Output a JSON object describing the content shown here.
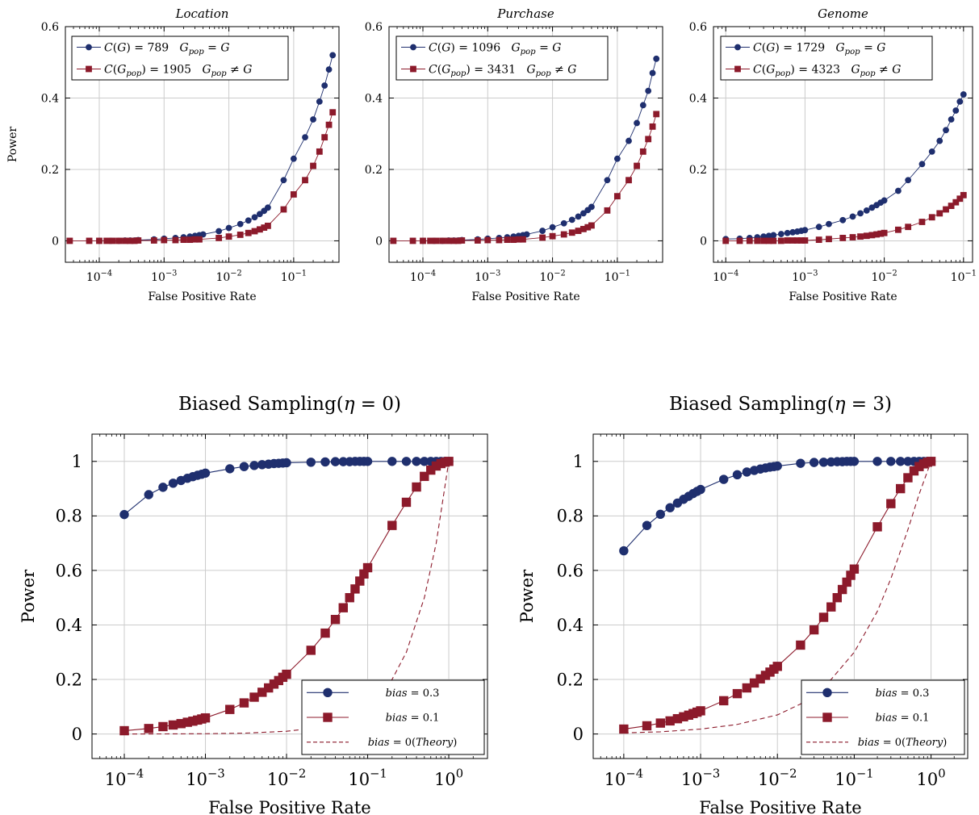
{
  "colors": {
    "blue": "#1f2f6e",
    "red": "#8c1a2b",
    "grid": "#cccccc"
  },
  "chart_data": [
    {
      "type": "line",
      "title": "Location",
      "xlabel": "False Positive Rate",
      "ylabel": "Power",
      "xscale": "log",
      "xlim": [
        3e-05,
        0.5
      ],
      "ylim": [
        -0.06,
        0.6
      ],
      "xticks": [
        "10^-4",
        "10^-3",
        "10^-2",
        "10^-1"
      ],
      "yticks": [
        "0",
        "0.2",
        "0.4",
        "0.6"
      ],
      "grid": true,
      "legend": "top-left",
      "series": [
        {
          "name": "C(G) = 789   G_pop = G",
          "marker": "circle",
          "color": "blue",
          "x": [
            0.0001,
            0.00015,
            0.0002,
            0.00025,
            0.0003,
            0.00035,
            0.0004,
            0.0007,
            0.001,
            0.0015,
            0.002,
            0.0025,
            0.003,
            0.0035,
            0.004,
            0.007,
            0.01,
            0.015,
            0.02,
            0.025,
            0.03,
            0.035,
            0.04,
            0.07,
            0.1,
            0.15,
            0.2,
            0.25,
            0.3,
            0.35,
            0.4
          ],
          "y": [
            0,
            0,
            0,
            0.001,
            0.001,
            0.001,
            0.002,
            0.004,
            0.006,
            0.008,
            0.01,
            0.012,
            0.014,
            0.016,
            0.018,
            0.027,
            0.036,
            0.047,
            0.057,
            0.066,
            0.075,
            0.084,
            0.093,
            0.17,
            0.23,
            0.29,
            0.34,
            0.39,
            0.435,
            0.48,
            0.52
          ]
        },
        {
          "name": "C(G_pop) = 1905   G_pop ≠ G",
          "marker": "square",
          "color": "red",
          "x": [
            3.5e-05,
            7e-05,
            0.0001,
            0.00013,
            0.00016,
            0.0002,
            0.00025,
            0.0003,
            0.00035,
            0.0004,
            0.0007,
            0.001,
            0.0015,
            0.002,
            0.0025,
            0.003,
            0.0035,
            0.007,
            0.01,
            0.015,
            0.02,
            0.025,
            0.03,
            0.035,
            0.04,
            0.07,
            0.1,
            0.15,
            0.2,
            0.25,
            0.3,
            0.35,
            0.4
          ],
          "y": [
            0,
            0,
            0,
            0,
            0,
            0,
            0,
            0,
            0,
            0.001,
            0.001,
            0.002,
            0.002,
            0.003,
            0.003,
            0.004,
            0.004,
            0.008,
            0.012,
            0.017,
            0.022,
            0.027,
            0.032,
            0.037,
            0.042,
            0.088,
            0.13,
            0.17,
            0.21,
            0.25,
            0.29,
            0.325,
            0.36
          ]
        }
      ]
    },
    {
      "type": "line",
      "title": "Purchase",
      "xlabel": "False Positive Rate",
      "ylabel": "",
      "xscale": "log",
      "xlim": [
        3e-05,
        0.5
      ],
      "ylim": [
        -0.06,
        0.6
      ],
      "xticks": [
        "10^-4",
        "10^-3",
        "10^-2",
        "10^-1"
      ],
      "yticks": [
        "0",
        "0.2",
        "0.4",
        "0.6"
      ],
      "grid": true,
      "legend": "top-left",
      "series": [
        {
          "name": "C(G) = 1096   G_pop = G",
          "marker": "circle",
          "color": "blue",
          "x": [
            0.0001,
            0.00015,
            0.0002,
            0.00025,
            0.0003,
            0.00035,
            0.0004,
            0.0007,
            0.001,
            0.0015,
            0.002,
            0.0025,
            0.003,
            0.0035,
            0.004,
            0.007,
            0.01,
            0.015,
            0.02,
            0.025,
            0.03,
            0.035,
            0.04,
            0.07,
            0.1,
            0.15,
            0.2,
            0.25,
            0.3,
            0.35,
            0.4
          ],
          "y": [
            0,
            0,
            0,
            0.001,
            0.001,
            0.001,
            0.002,
            0.004,
            0.006,
            0.008,
            0.01,
            0.012,
            0.014,
            0.016,
            0.018,
            0.028,
            0.038,
            0.049,
            0.059,
            0.068,
            0.077,
            0.086,
            0.095,
            0.17,
            0.23,
            0.28,
            0.33,
            0.38,
            0.42,
            0.47,
            0.51
          ]
        },
        {
          "name": "C(G_pop) = 3431   G_pop ≠ G",
          "marker": "square",
          "color": "red",
          "x": [
            3.5e-05,
            7e-05,
            0.0001,
            0.00013,
            0.00016,
            0.0002,
            0.00025,
            0.0003,
            0.00035,
            0.0004,
            0.0007,
            0.001,
            0.0015,
            0.002,
            0.0025,
            0.003,
            0.0035,
            0.007,
            0.01,
            0.015,
            0.02,
            0.025,
            0.03,
            0.035,
            0.04,
            0.07,
            0.1,
            0.15,
            0.2,
            0.25,
            0.3,
            0.35,
            0.4
          ],
          "y": [
            0,
            0,
            0,
            0,
            0,
            0,
            0,
            0,
            0,
            0.001,
            0.001,
            0.002,
            0.002,
            0.003,
            0.003,
            0.004,
            0.004,
            0.009,
            0.013,
            0.018,
            0.023,
            0.028,
            0.033,
            0.038,
            0.043,
            0.085,
            0.125,
            0.17,
            0.21,
            0.25,
            0.285,
            0.32,
            0.355
          ]
        }
      ]
    },
    {
      "type": "line",
      "title": "Genome",
      "xlabel": "False Positive Rate",
      "ylabel": "",
      "xscale": "log",
      "xlim": [
        7e-05,
        0.13
      ],
      "ylim": [
        -0.06,
        0.6
      ],
      "xticks": [
        "10^-4",
        "10^-3",
        "10^-2",
        "10^-1"
      ],
      "yticks": [
        "0",
        "0.2",
        "0.4",
        "0.6"
      ],
      "grid": true,
      "legend": "top-left",
      "series": [
        {
          "name": "C(G) = 1729   G_pop = G",
          "marker": "circle",
          "color": "blue",
          "x": [
            0.0001,
            0.00015,
            0.0002,
            0.00025,
            0.0003,
            0.00035,
            0.0004,
            0.0005,
            0.0006,
            0.0007,
            0.0008,
            0.0009,
            0.001,
            0.0015,
            0.002,
            0.003,
            0.004,
            0.005,
            0.006,
            0.007,
            0.008,
            0.009,
            0.01,
            0.015,
            0.02,
            0.03,
            0.04,
            0.05,
            0.06,
            0.07,
            0.08,
            0.09,
            0.1
          ],
          "y": [
            0.005,
            0.006,
            0.008,
            0.01,
            0.012,
            0.014,
            0.016,
            0.019,
            0.022,
            0.024,
            0.026,
            0.028,
            0.03,
            0.039,
            0.047,
            0.058,
            0.068,
            0.077,
            0.085,
            0.093,
            0.1,
            0.107,
            0.113,
            0.14,
            0.17,
            0.215,
            0.25,
            0.28,
            0.31,
            0.34,
            0.365,
            0.39,
            0.41
          ]
        },
        {
          "name": "C(G_pop) = 4323   G_pop ≠ G",
          "marker": "square",
          "color": "red",
          "x": [
            0.0001,
            0.00015,
            0.0002,
            0.00025,
            0.0003,
            0.00035,
            0.0004,
            0.0005,
            0.0006,
            0.0007,
            0.0008,
            0.0009,
            0.001,
            0.0015,
            0.002,
            0.003,
            0.004,
            0.005,
            0.006,
            0.007,
            0.008,
            0.009,
            0.01,
            0.015,
            0.02,
            0.03,
            0.04,
            0.05,
            0.06,
            0.07,
            0.08,
            0.09,
            0.1
          ],
          "y": [
            0,
            0,
            0,
            0,
            0,
            0,
            0,
            0,
            0.001,
            0.001,
            0.001,
            0.001,
            0.001,
            0.003,
            0.005,
            0.008,
            0.01,
            0.012,
            0.014,
            0.016,
            0.018,
            0.02,
            0.022,
            0.031,
            0.039,
            0.053,
            0.066,
            0.077,
            0.088,
            0.098,
            0.108,
            0.118,
            0.128
          ]
        }
      ]
    },
    {
      "type": "line",
      "title": "Biased Sampling(η = 0)",
      "xlabel": "False Positive Rate",
      "ylabel": "Power",
      "xscale": "log",
      "xlim": [
        4e-05,
        3
      ],
      "ylim": [
        -0.09,
        1.1
      ],
      "xticks": [
        "10^-4",
        "10^-3",
        "10^-2",
        "10^-1",
        "10^0"
      ],
      "yticks": [
        "0",
        "0.2",
        "0.4",
        "0.6",
        "0.8",
        "1"
      ],
      "grid": true,
      "legend": "bottom-right",
      "series": [
        {
          "name": "bias = 0.3",
          "marker": "circle",
          "color": "blue",
          "x": [
            0.0001,
            0.0002,
            0.0003,
            0.0004,
            0.0005,
            0.0006,
            0.0007,
            0.0008,
            0.0009,
            0.001,
            0.002,
            0.003,
            0.004,
            0.005,
            0.006,
            0.007,
            0.008,
            0.009,
            0.01,
            0.02,
            0.03,
            0.04,
            0.05,
            0.06,
            0.07,
            0.08,
            0.09,
            0.1,
            0.2,
            0.3,
            0.4,
            0.5,
            0.6,
            0.7,
            0.8,
            0.9,
            1
          ],
          "y": [
            0.805,
            0.878,
            0.905,
            0.92,
            0.93,
            0.938,
            0.944,
            0.949,
            0.953,
            0.957,
            0.973,
            0.981,
            0.985,
            0.988,
            0.99,
            0.992,
            0.993,
            0.994,
            0.995,
            0.997,
            0.998,
            0.999,
            0.999,
            0.999,
            1,
            1,
            1,
            1,
            1,
            1,
            1,
            1,
            1,
            1,
            1,
            1,
            1
          ]
        },
        {
          "name": "bias = 0.1",
          "marker": "square",
          "color": "red",
          "x": [
            0.0001,
            0.0002,
            0.0003,
            0.0004,
            0.0005,
            0.0006,
            0.0007,
            0.0008,
            0.0009,
            0.001,
            0.002,
            0.003,
            0.004,
            0.005,
            0.006,
            0.007,
            0.008,
            0.009,
            0.01,
            0.02,
            0.03,
            0.04,
            0.05,
            0.06,
            0.07,
            0.08,
            0.09,
            0.1,
            0.2,
            0.3,
            0.4,
            0.5,
            0.6,
            0.7,
            0.8,
            0.9,
            1
          ],
          "y": [
            0.012,
            0.02,
            0.027,
            0.033,
            0.038,
            0.043,
            0.047,
            0.051,
            0.055,
            0.059,
            0.09,
            0.114,
            0.135,
            0.153,
            0.169,
            0.183,
            0.196,
            0.208,
            0.219,
            0.307,
            0.37,
            0.42,
            0.463,
            0.5,
            0.532,
            0.561,
            0.587,
            0.61,
            0.765,
            0.85,
            0.906,
            0.945,
            0.968,
            0.983,
            0.992,
            0.997,
            1
          ]
        },
        {
          "name": "bias = 0(Theory)",
          "marker": "none",
          "style": "dashed",
          "color": "red",
          "x": [
            0.0001,
            0.0003,
            0.001,
            0.003,
            0.01,
            0.02,
            0.05,
            0.1,
            0.2,
            0.3,
            0.5,
            0.7,
            1
          ],
          "y": [
            0.0001,
            0.0003,
            0.001,
            0.003,
            0.01,
            0.02,
            0.05,
            0.1,
            0.2,
            0.3,
            0.5,
            0.7,
            1
          ]
        }
      ]
    },
    {
      "type": "line",
      "title": "Biased Sampling(η = 3)",
      "xlabel": "False Positive Rate",
      "ylabel": "Power",
      "xscale": "log",
      "xlim": [
        4e-05,
        3
      ],
      "ylim": [
        -0.09,
        1.1
      ],
      "xticks": [
        "10^-4",
        "10^-3",
        "10^-2",
        "10^-1",
        "10^0"
      ],
      "yticks": [
        "0",
        "0.2",
        "0.4",
        "0.6",
        "0.8",
        "1"
      ],
      "grid": true,
      "legend": "bottom-right",
      "series": [
        {
          "name": "bias = 0.3",
          "marker": "circle",
          "color": "blue",
          "x": [
            0.0001,
            0.0002,
            0.0003,
            0.0004,
            0.0005,
            0.0006,
            0.0007,
            0.0008,
            0.0009,
            0.001,
            0.002,
            0.003,
            0.004,
            0.005,
            0.006,
            0.007,
            0.008,
            0.009,
            0.01,
            0.02,
            0.03,
            0.04,
            0.05,
            0.06,
            0.07,
            0.08,
            0.09,
            0.1,
            0.2,
            0.3,
            0.4,
            0.5,
            0.6,
            0.7,
            0.8,
            0.9,
            1
          ],
          "y": [
            0.672,
            0.765,
            0.806,
            0.83,
            0.847,
            0.861,
            0.872,
            0.882,
            0.89,
            0.897,
            0.934,
            0.951,
            0.961,
            0.967,
            0.972,
            0.976,
            0.979,
            0.981,
            0.983,
            0.993,
            0.996,
            0.997,
            0.998,
            0.999,
            0.999,
            1,
            1,
            1,
            1,
            1,
            1,
            1,
            1,
            1,
            1,
            1,
            1
          ]
        },
        {
          "name": "bias = 0.1",
          "marker": "square",
          "color": "red",
          "x": [
            0.0001,
            0.0002,
            0.0003,
            0.0004,
            0.0005,
            0.0006,
            0.0007,
            0.0008,
            0.0009,
            0.001,
            0.002,
            0.003,
            0.004,
            0.005,
            0.006,
            0.007,
            0.008,
            0.009,
            0.01,
            0.02,
            0.03,
            0.04,
            0.05,
            0.06,
            0.07,
            0.08,
            0.09,
            0.1,
            0.2,
            0.3,
            0.4,
            0.5,
            0.6,
            0.7,
            0.8,
            0.9,
            1
          ],
          "y": [
            0.018,
            0.03,
            0.04,
            0.048,
            0.056,
            0.063,
            0.069,
            0.075,
            0.08,
            0.085,
            0.122,
            0.148,
            0.169,
            0.187,
            0.202,
            0.215,
            0.227,
            0.238,
            0.248,
            0.326,
            0.382,
            0.428,
            0.466,
            0.5,
            0.53,
            0.557,
            0.582,
            0.605,
            0.76,
            0.845,
            0.9,
            0.94,
            0.965,
            0.981,
            0.991,
            0.997,
            1
          ]
        },
        {
          "name": "bias = 0(Theory)",
          "marker": "none",
          "style": "dashed",
          "color": "red",
          "x": [
            0.0001,
            0.0003,
            0.001,
            0.003,
            0.01,
            0.02,
            0.05,
            0.1,
            0.2,
            0.3,
            0.5,
            0.7,
            1
          ],
          "y": [
            0.004,
            0.008,
            0.018,
            0.035,
            0.07,
            0.11,
            0.2,
            0.3,
            0.45,
            0.57,
            0.75,
            0.88,
            1
          ]
        }
      ]
    }
  ]
}
